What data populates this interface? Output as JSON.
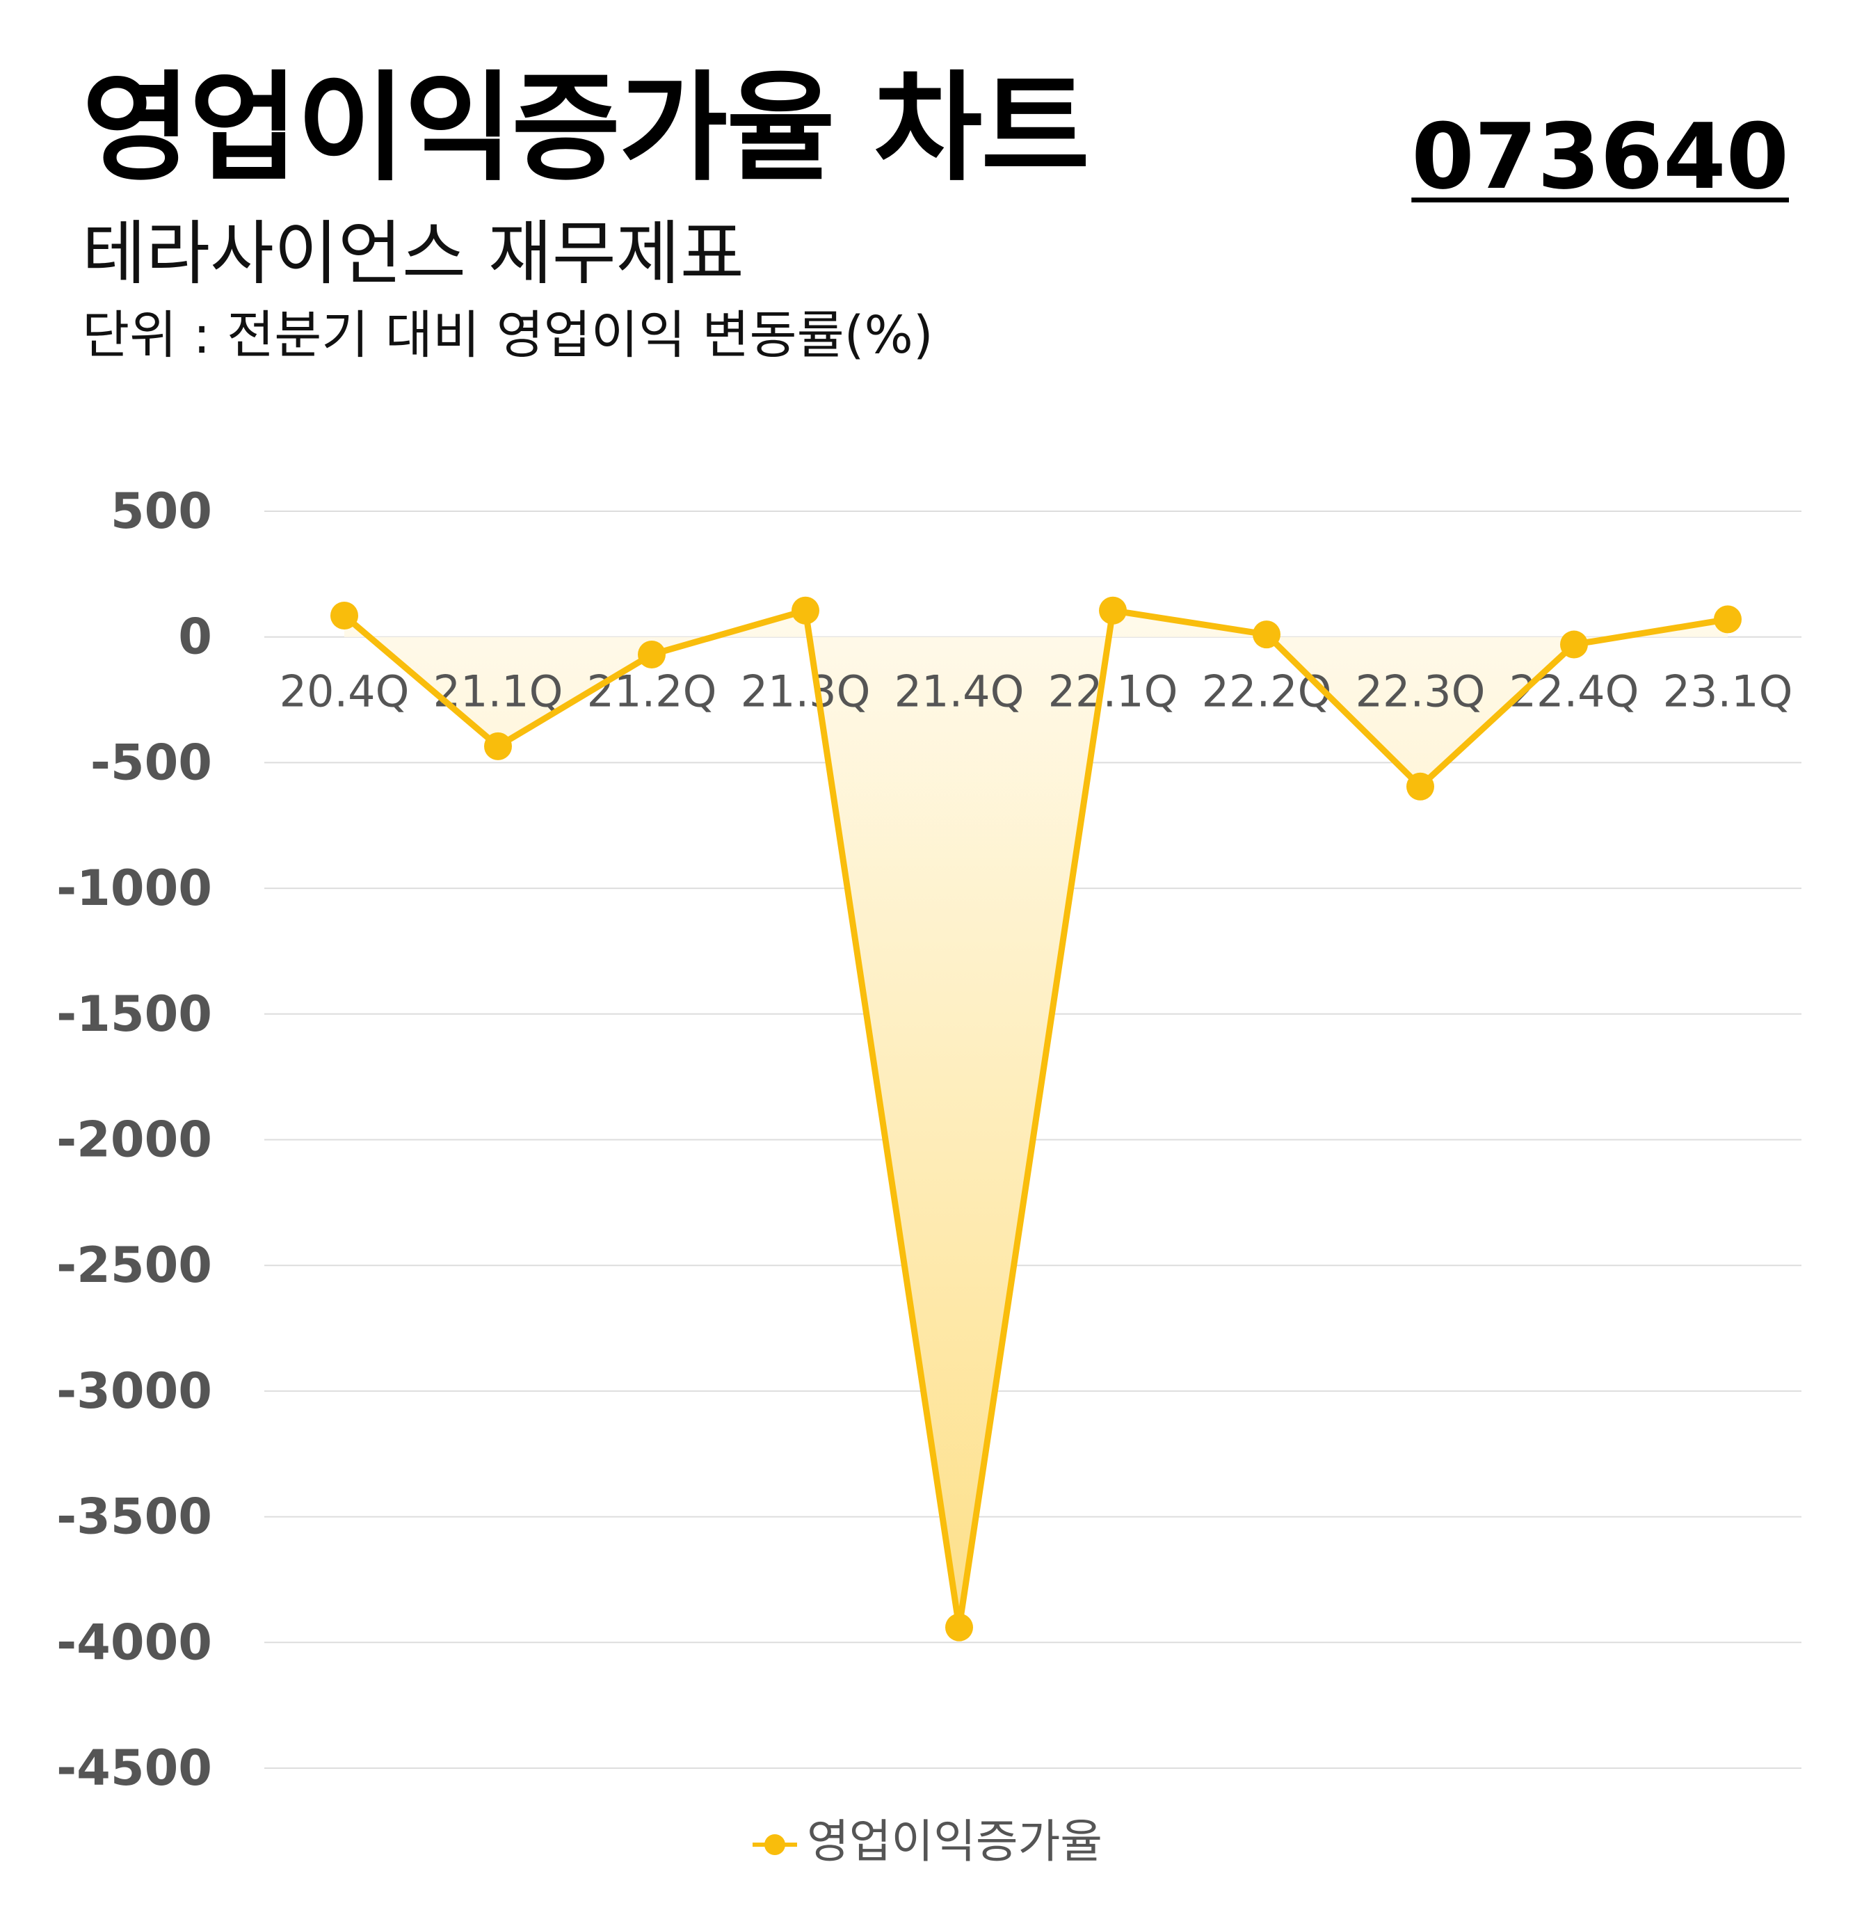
{
  "header": {
    "title": "영업이익증가율 차트",
    "code": "073640",
    "subtitle": "테라사이언스 재무제표",
    "unit": "단위 : 전분기 대비 영업이익 변동률(%)"
  },
  "legend": {
    "label": "영업이익증가율"
  },
  "colors": {
    "line": "#f9bd0c",
    "fill_top": "#fffaeb",
    "fill_bottom": "#fde08a",
    "grid": "#dddddd",
    "y_tick": "#555555",
    "x_tick": "#555555"
  },
  "chart_data": {
    "type": "area",
    "categories": [
      "20.4Q",
      "21.1Q",
      "21.2Q",
      "21.3Q",
      "21.4Q",
      "22.1Q",
      "22.2Q",
      "22.3Q",
      "22.4Q",
      "23.1Q"
    ],
    "series": [
      {
        "name": "영업이익증가율",
        "values": [
          85,
          -435,
          -70,
          105,
          -3940,
          105,
          10,
          -595,
          -30,
          70
        ]
      }
    ],
    "ylim": [
      -4500,
      500
    ],
    "yticks": [
      500,
      0,
      -500,
      -1000,
      -1500,
      -2000,
      -2500,
      -3000,
      -3500,
      -4000,
      -4500
    ],
    "grid": true,
    "legend_position": "bottom"
  }
}
